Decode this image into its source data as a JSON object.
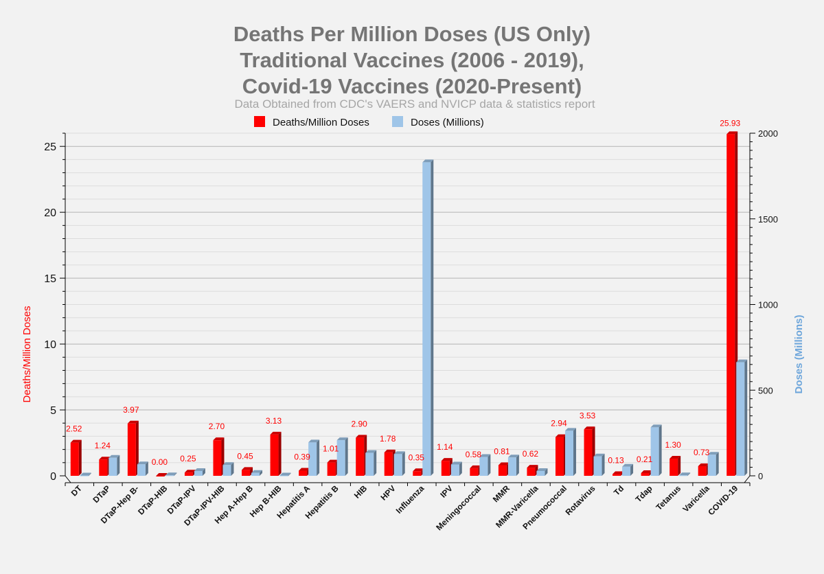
{
  "chart_data": {
    "type": "bar",
    "title_lines": [
      "Deaths Per Million Doses (US Only)",
      "Traditional Vaccines (2006 - 2019),",
      "Covid-19 Vaccines (2020-Present)"
    ],
    "subtitle": "Data Obtained from CDC's VAERS and NVICP data & statistics report",
    "ylabel_left": "Deaths/Million Doses",
    "ylabel_right": "Doses (Millions)",
    "ylim_left": [
      0,
      26
    ],
    "ylim_right": [
      0,
      2000
    ],
    "left_ticks": [
      0,
      5,
      10,
      15,
      20,
      25
    ],
    "right_ticks": [
      0,
      500,
      1000,
      1500,
      2000
    ],
    "categories": [
      "DT",
      "DTaP",
      "DTaP-Hep B-",
      "DTaP-HIB",
      "DTaP-IPV",
      "DTaP-IPV-HIB",
      "Hep A-Hep B",
      "Hep B-HIB",
      "Hepatitis A",
      "Hepatitis B",
      "HIB",
      "HPV",
      "Influenza",
      "IPV",
      "Meningococcal",
      "MMR",
      "MMR-Varicella",
      "Pneumococcal",
      "Rotavirus",
      "Td",
      "Tdap",
      "Tetanus",
      "Varicella",
      "COVID-19"
    ],
    "series": [
      {
        "name": "Deaths/Million Doses",
        "color": "#ff0000",
        "axis": "left",
        "values": [
          2.52,
          1.24,
          3.97,
          0.0,
          0.25,
          2.7,
          0.45,
          3.13,
          0.39,
          1.01,
          2.9,
          1.78,
          0.35,
          1.14,
          0.58,
          0.81,
          0.62,
          2.94,
          3.53,
          0.13,
          0.21,
          1.3,
          0.73,
          25.93
        ],
        "labels": [
          "2.52",
          "1.24",
          "3.97",
          "0.00",
          "0.25",
          "2.70",
          "0.45",
          "3.13",
          "0.39",
          "1.01",
          "2.90",
          "1.78",
          "0.35",
          "1.14",
          "0.58",
          "0.81",
          "0.62",
          "2.94",
          "3.53",
          "0.13",
          "0.21",
          "1.30",
          "0.73",
          "25.93"
        ]
      },
      {
        "name": "Doses (Millions)",
        "color": "#9fc5e8",
        "axis": "right",
        "values": [
          2,
          105,
          67,
          3,
          28,
          63,
          17,
          2,
          195,
          208,
          134,
          127,
          1830,
          66,
          110,
          107,
          28,
          263,
          113,
          53,
          283,
          3,
          123,
          663
        ]
      }
    ]
  }
}
